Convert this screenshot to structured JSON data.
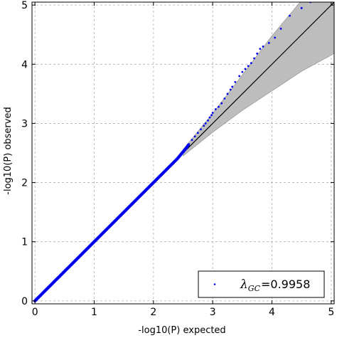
{
  "chart_data": {
    "type": "scatter",
    "title": "",
    "xlabel": "-log10(P) expected",
    "ylabel": "-log10(P) observed",
    "xlim": [
      -0.05,
      5.05
    ],
    "ylim": [
      -0.05,
      5.05
    ],
    "xticks": [
      "0",
      "1",
      "2",
      "3",
      "4",
      "5"
    ],
    "yticks": [
      "0",
      "1",
      "2",
      "3",
      "4",
      "5"
    ],
    "grid": true,
    "legend_position": "bottom-right",
    "legend": {
      "symbol": "λ",
      "subscript": "GC",
      "equals": "=",
      "value": "0.9958"
    },
    "reference_line": {
      "x": [
        0,
        5.05
      ],
      "y": [
        0,
        5.05
      ]
    },
    "confidence_band": {
      "x": [
        2.5,
        3.0,
        3.5,
        4.0,
        4.5,
        5.05
      ],
      "lower": [
        2.45,
        2.85,
        3.22,
        3.55,
        3.88,
        4.18
      ],
      "upper": [
        2.56,
        3.17,
        3.82,
        4.48,
        5.08,
        5.75
      ]
    },
    "series": [
      {
        "color": "#0000ee",
        "x": [
          0.0,
          0.05,
          0.1,
          0.15,
          0.2,
          0.3,
          0.4,
          0.5,
          0.6,
          0.7,
          0.8,
          0.9,
          1.0,
          1.1,
          1.2,
          1.3,
          1.4,
          1.5,
          1.6,
          1.7,
          1.8,
          1.9,
          2.0,
          2.1,
          2.2,
          2.3,
          2.4,
          2.5,
          2.55,
          2.6,
          2.65,
          2.7,
          2.75,
          2.8,
          2.85,
          2.88,
          2.92,
          2.95,
          2.98,
          3.0,
          3.05,
          3.1,
          3.15,
          3.2,
          3.25,
          3.3,
          3.33,
          3.38,
          3.45,
          3.5,
          3.55,
          3.6,
          3.65,
          3.7,
          3.75,
          3.8,
          3.85,
          3.95,
          4.05,
          4.15,
          4.3,
          4.5,
          4.65
        ],
        "y": [
          0.0,
          0.05,
          0.1,
          0.15,
          0.2,
          0.3,
          0.4,
          0.5,
          0.6,
          0.7,
          0.8,
          0.9,
          1.0,
          1.1,
          1.2,
          1.3,
          1.4,
          1.5,
          1.6,
          1.7,
          1.8,
          1.9,
          2.0,
          2.1,
          2.2,
          2.3,
          2.4,
          2.52,
          2.58,
          2.65,
          2.72,
          2.78,
          2.84,
          2.9,
          2.96,
          3.0,
          3.05,
          3.1,
          3.14,
          3.18,
          3.24,
          3.28,
          3.34,
          3.42,
          3.5,
          3.57,
          3.62,
          3.7,
          3.8,
          3.87,
          3.92,
          3.97,
          4.02,
          4.1,
          4.18,
          4.26,
          4.3,
          4.36,
          4.45,
          4.6,
          4.82,
          4.95,
          5.05
        ]
      }
    ]
  }
}
